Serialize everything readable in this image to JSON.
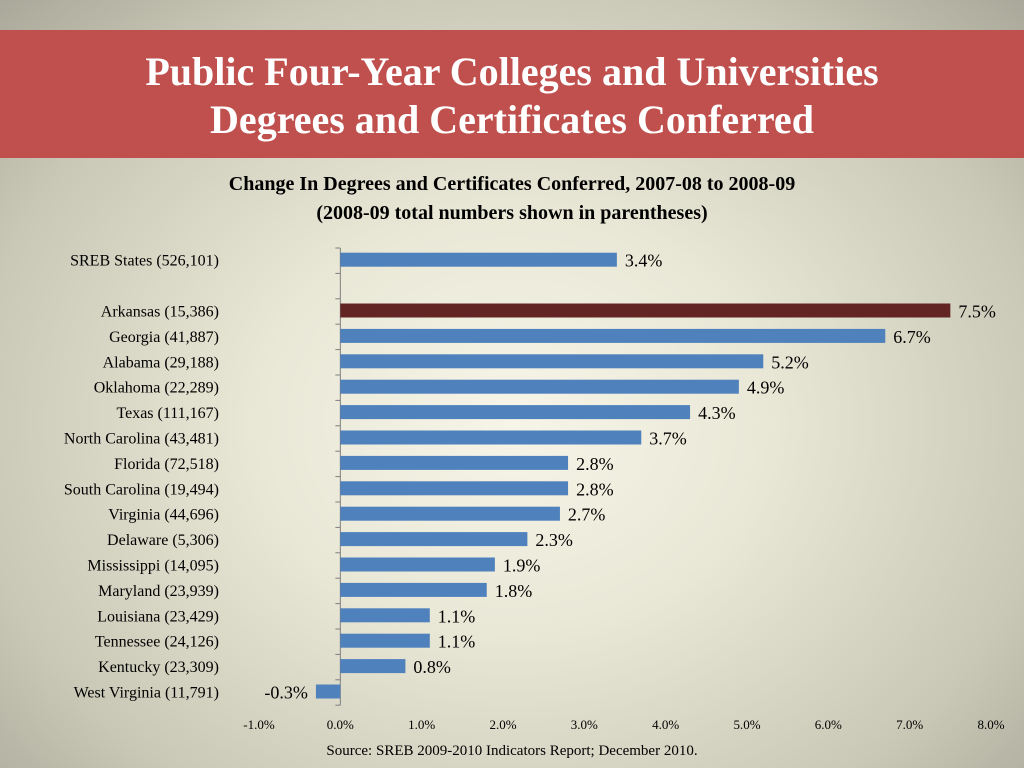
{
  "header": {
    "title_line1": "Public Four-Year Colleges and Universities",
    "title_line2": "Degrees and Certificates Conferred"
  },
  "chart_title": {
    "line1": "Change In Degrees and Certificates Conferred, 2007-08 to 2008-09",
    "line2": "(2008-09 total numbers shown in parentheses)"
  },
  "source": "Source: SREB 2009-2010 Indicators Report; December 2010.",
  "colors": {
    "bar": "#4f81bd",
    "highlight": "#632523",
    "banner": "#c0504d"
  },
  "chart_data": {
    "type": "bar",
    "orientation": "horizontal",
    "title": "Change In Degrees and Certificates Conferred, 2007-08 to 2008-09",
    "subtitle": "(2008-09 total numbers shown in parentheses)",
    "xlabel": "",
    "ylabel": "",
    "xlim": [
      -0.01,
      0.08
    ],
    "x_ticks": [
      "-1.0%",
      "0.0%",
      "1.0%",
      "2.0%",
      "3.0%",
      "4.0%",
      "5.0%",
      "6.0%",
      "7.0%",
      "8.0%"
    ],
    "grid": false,
    "legend": "none",
    "categories": [
      "SREB States (526,101)",
      "",
      "Arkansas (15,386)",
      "Georgia (41,887)",
      "Alabama (29,188)",
      "Oklahoma (22,289)",
      "Texas (111,167)",
      "North Carolina (43,481)",
      "Florida (72,518)",
      "South Carolina (19,494)",
      "Virginia (44,696)",
      "Delaware (5,306)",
      "Mississippi (14,095)",
      "Maryland (23,939)",
      "Louisiana (23,429)",
      "Tennessee (24,126)",
      "Kentucky (23,309)",
      "West Virginia (11,791)"
    ],
    "values": [
      0.034,
      null,
      0.075,
      0.067,
      0.052,
      0.049,
      0.043,
      0.037,
      0.028,
      0.028,
      0.027,
      0.023,
      0.019,
      0.018,
      0.011,
      0.011,
      0.008,
      -0.003
    ],
    "data_labels": [
      "3.4%",
      "",
      "7.5%",
      "6.7%",
      "5.2%",
      "4.9%",
      "4.3%",
      "3.7%",
      "2.8%",
      "2.8%",
      "2.7%",
      "2.3%",
      "1.9%",
      "1.8%",
      "1.1%",
      "1.1%",
      "0.8%",
      "-0.3%"
    ],
    "highlighted_category": "Arkansas (15,386)"
  }
}
